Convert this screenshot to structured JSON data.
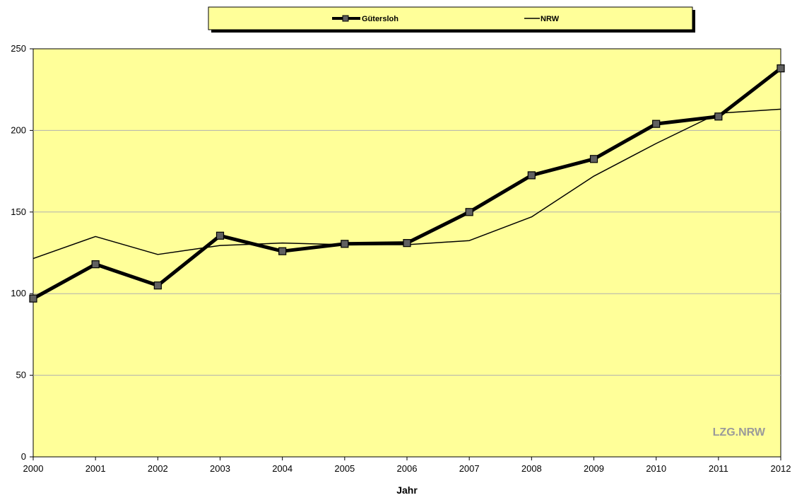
{
  "chart_data": {
    "type": "line",
    "title": "",
    "xlabel": "Jahr",
    "ylabel": "",
    "x": [
      "2000",
      "2001",
      "2002",
      "2003",
      "2004",
      "2005",
      "2006",
      "2007",
      "2008",
      "2009",
      "2010",
      "2011",
      "2012"
    ],
    "ylim": [
      0,
      250
    ],
    "yticks": [
      "0",
      "50",
      "100",
      "150",
      "200",
      "250"
    ],
    "grid": true,
    "legend_position": "top",
    "watermark": "LZG.NRW",
    "series": [
      {
        "name": "Gütersloh",
        "color": "#000000",
        "marker": "square",
        "values": [
          97,
          118,
          105,
          135.5,
          126,
          130.5,
          131,
          150,
          172.5,
          182.5,
          204,
          208.5,
          238
        ]
      },
      {
        "name": "NRW",
        "color": "#000000",
        "marker": "none",
        "values": [
          121.5,
          135,
          124,
          129.5,
          131,
          130,
          130,
          132.5,
          147,
          172,
          192,
          210.5,
          213
        ]
      }
    ]
  },
  "colors": {
    "plot_background": "#ffff99",
    "legend_background": "#ffff99",
    "gridline": "#b0b0b0",
    "marker_fill": "#606060"
  }
}
